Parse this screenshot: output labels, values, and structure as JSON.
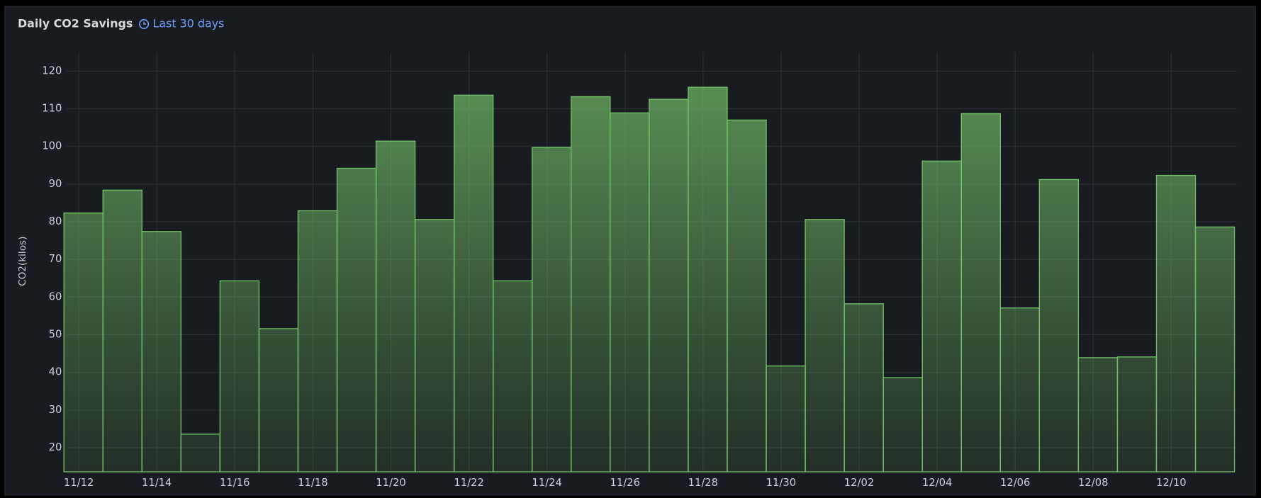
{
  "chart_data": {
    "type": "bar",
    "title": "Daily CO2 Savings",
    "time_range": "Last 30 days",
    "y_label": "CO2(kilos)",
    "categories": [
      "11/12",
      null,
      "11/14",
      null,
      "11/16",
      null,
      "11/18",
      null,
      "11/20",
      null,
      "11/22",
      null,
      "11/24",
      null,
      "11/26",
      null,
      "11/28",
      null,
      "11/30",
      null,
      "12/02",
      null,
      "12/04",
      null,
      "12/06",
      null,
      "12/08",
      null,
      "12/10",
      null
    ],
    "values": [
      82.3,
      88.4,
      77.4,
      23.6,
      64.3,
      51.6,
      82.9,
      94.2,
      101.4,
      80.6,
      113.6,
      64.3,
      99.7,
      113.2,
      108.9,
      112.5,
      115.7,
      107.0,
      41.7,
      80.6,
      58.2,
      38.6,
      96.1,
      108.7,
      57.1,
      91.2,
      43.9,
      44.1,
      92.3,
      78.6
    ],
    "color": "#73bf69",
    "ylim": [
      13.6,
      125
    ],
    "yticks": [
      20,
      30,
      40,
      50,
      60,
      70,
      80,
      90,
      100,
      110,
      120
    ],
    "grid": true
  }
}
